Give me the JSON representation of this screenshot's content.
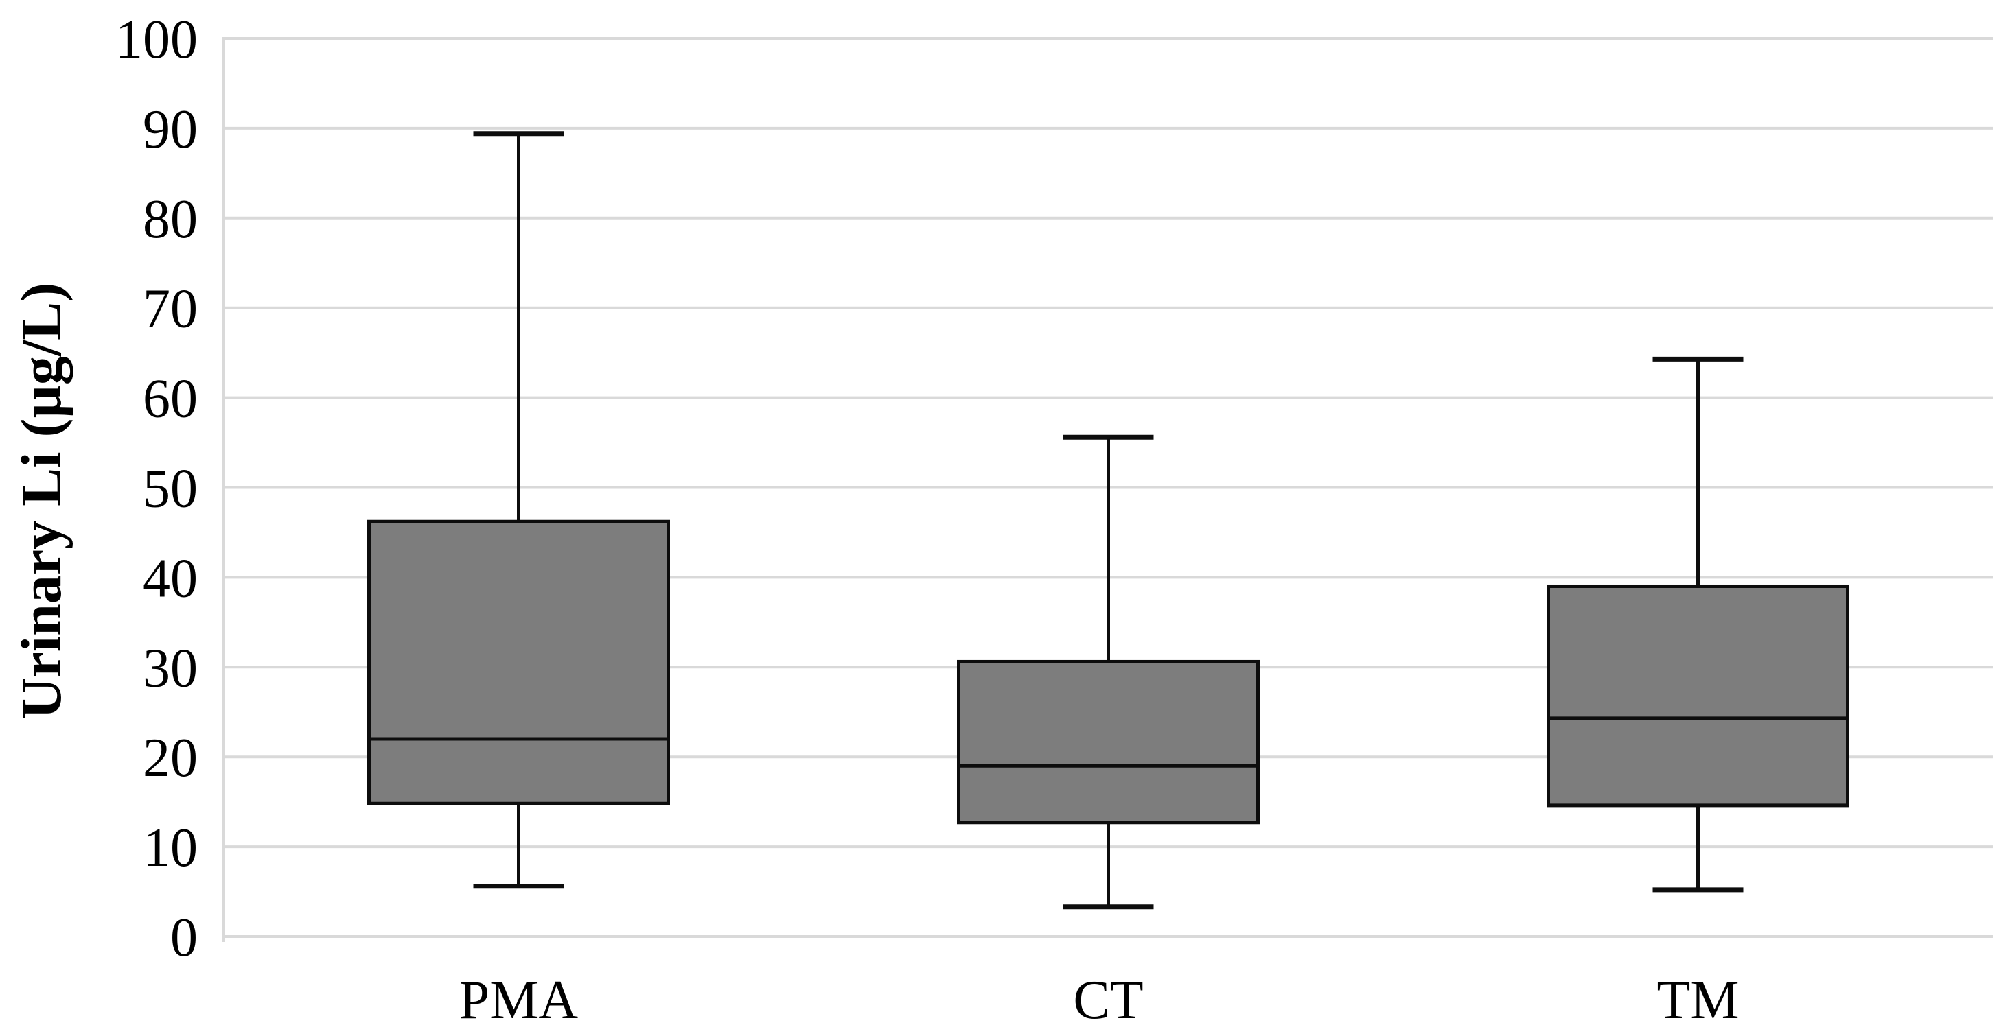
{
  "chart_data": {
    "type": "boxplot",
    "title": "",
    "xlabel": "",
    "ylabel": "Urinary Li (µg/L)",
    "ylim": [
      0,
      100
    ],
    "ytick_interval": 10,
    "yticks": [
      0,
      10,
      20,
      30,
      40,
      50,
      60,
      70,
      80,
      90,
      100
    ],
    "grid": "horizontal",
    "legend": "none",
    "categories": [
      "PMA",
      "CT",
      "TM"
    ],
    "series": [
      {
        "name": "PMA",
        "whisker_min": 5.6,
        "q1": 14.8,
        "median": 22.0,
        "q3": 46.2,
        "whisker_max": 89.4
      },
      {
        "name": "CT",
        "whisker_min": 3.3,
        "q1": 12.7,
        "median": 19.0,
        "q3": 30.6,
        "whisker_max": 55.6
      },
      {
        "name": "TM",
        "whisker_min": 5.2,
        "q1": 14.6,
        "median": 24.3,
        "q3": 39.0,
        "whisker_max": 64.3
      }
    ],
    "colors": {
      "background": "#ffffff",
      "box_fill": "#7d7d7d",
      "box_border": "#0d0d0d",
      "whisker": "#0d0d0d",
      "median": "#0d0d0d",
      "gridline": "#d9d9d9",
      "axis_line": "#d9d9d9",
      "text": "#000000"
    }
  }
}
